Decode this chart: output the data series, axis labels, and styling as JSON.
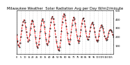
{
  "title": "Milwaukee Weather  Solar Radiation Avg per Day W/m2/minute",
  "title_fontsize": 3.8,
  "line_color": "#ff0000",
  "line_style": "--",
  "line_width": 0.6,
  "marker": "s",
  "marker_size": 0.8,
  "marker_color": "#000000",
  "background_color": "#ffffff",
  "grid_color": "#bbbbbb",
  "grid_style": ":",
  "ylim": [
    0,
    500
  ],
  "yticks": [
    100,
    200,
    300,
    400,
    500
  ],
  "ytick_labels": [
    "1\n0\n0",
    "2\n0\n0",
    "3\n0\n0",
    "4\n0\n0",
    "5\n0\n0"
  ],
  "ytick_fontsize": 2.8,
  "xtick_fontsize": 2.5,
  "values": [
    220,
    150,
    100,
    80,
    130,
    200,
    270,
    330,
    370,
    390,
    360,
    310,
    250,
    190,
    140,
    160,
    220,
    290,
    350,
    390,
    370,
    320,
    260,
    190,
    130,
    90,
    70,
    110,
    180,
    260,
    330,
    380,
    400,
    370,
    310,
    240,
    170,
    120,
    100,
    140,
    210,
    290,
    360,
    410,
    430,
    400,
    340,
    270,
    200,
    140,
    80,
    50,
    40,
    80,
    160,
    260,
    360,
    430,
    460,
    440,
    390,
    320,
    240,
    170,
    120,
    110,
    170,
    250,
    330,
    390,
    420,
    400,
    350,
    280,
    210,
    160,
    130,
    150,
    210,
    280,
    350,
    400,
    410,
    380,
    320,
    260,
    200,
    170,
    170,
    200,
    260,
    310,
    350,
    360,
    340,
    300,
    250,
    200,
    160,
    140,
    160,
    210,
    270,
    310,
    330,
    320,
    290,
    250,
    210,
    180,
    160,
    170,
    200,
    240,
    270,
    280,
    270,
    250,
    220,
    200
  ],
  "num_points": 120,
  "vline_interval": 5
}
